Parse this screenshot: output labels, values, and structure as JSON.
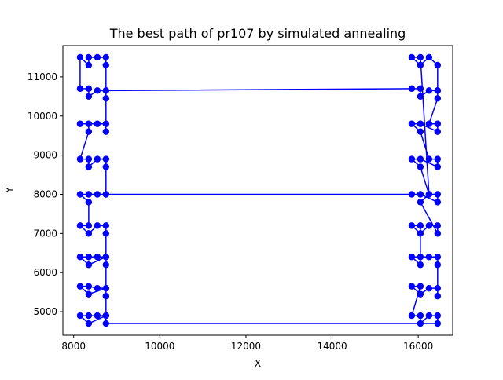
{
  "chart_data": {
    "type": "line",
    "title": "The best path of pr107 by simulated annealing",
    "xlabel": "X",
    "ylabel": "Y",
    "xlim": [
      7750,
      16800
    ],
    "ylim": [
      4400,
      11800
    ],
    "xticks": [
      8000,
      10000,
      12000,
      14000,
      16000
    ],
    "yticks": [
      5000,
      6000,
      7000,
      8000,
      9000,
      10000,
      11000
    ],
    "xtick_labels": [
      "8000",
      "10000",
      "12000",
      "14000",
      "16000"
    ],
    "ytick_labels": [
      "5000",
      "6000",
      "7000",
      "8000",
      "9000",
      "10000",
      "11000"
    ],
    "grid": false,
    "legend": "none",
    "series": [
      {
        "color": "#0000ff",
        "marker": "circle",
        "points": [
          [
            8750,
            8000
          ],
          [
            8750,
            8700
          ],
          [
            8750,
            8900
          ],
          [
            8550,
            8900
          ],
          [
            8350,
            8700
          ],
          [
            8350,
            8900
          ],
          [
            8150,
            8900
          ],
          [
            8350,
            9600
          ],
          [
            8350,
            9800
          ],
          [
            8150,
            9800
          ],
          [
            8550,
            9800
          ],
          [
            8750,
            9800
          ],
          [
            8750,
            9600
          ],
          [
            8750,
            10450
          ],
          [
            8750,
            10650
          ],
          [
            8550,
            10650
          ],
          [
            8350,
            10500
          ],
          [
            8350,
            10700
          ],
          [
            8150,
            10700
          ],
          [
            8150,
            11500
          ],
          [
            8350,
            11300
          ],
          [
            8350,
            11500
          ],
          [
            8550,
            11500
          ],
          [
            8750,
            11500
          ],
          [
            8750,
            11300
          ],
          [
            8750,
            10650
          ],
          [
            15850,
            10700
          ],
          [
            16050,
            10700
          ],
          [
            16050,
            10500
          ],
          [
            16250,
            10650
          ],
          [
            16450,
            10650
          ],
          [
            16450,
            10450
          ],
          [
            16250,
            9800
          ],
          [
            16450,
            9800
          ],
          [
            16450,
            9600
          ],
          [
            16050,
            9800
          ],
          [
            15850,
            9800
          ],
          [
            16050,
            9600
          ],
          [
            16250,
            8900
          ],
          [
            16450,
            8900
          ],
          [
            16450,
            8700
          ],
          [
            16050,
            8900
          ],
          [
            15850,
            8900
          ],
          [
            16050,
            8700
          ],
          [
            16250,
            8000
          ],
          [
            16450,
            8000
          ],
          [
            16450,
            7800
          ],
          [
            16050,
            8000
          ],
          [
            15850,
            8000
          ],
          [
            8750,
            8000
          ],
          [
            8550,
            8000
          ],
          [
            8350,
            8000
          ],
          [
            8150,
            8000
          ],
          [
            8350,
            7800
          ],
          [
            8350,
            7200
          ],
          [
            8150,
            7200
          ],
          [
            8350,
            7000
          ],
          [
            8550,
            7200
          ],
          [
            8750,
            7200
          ],
          [
            8750,
            7000
          ],
          [
            8750,
            6400
          ],
          [
            8550,
            6400
          ],
          [
            8350,
            6400
          ],
          [
            8150,
            6400
          ],
          [
            8350,
            6200
          ],
          [
            8750,
            6400
          ],
          [
            8750,
            6200
          ],
          [
            8750,
            5600
          ],
          [
            8550,
            5600
          ],
          [
            8350,
            5650
          ],
          [
            8150,
            5650
          ],
          [
            8350,
            5450
          ],
          [
            8750,
            5600
          ],
          [
            8750,
            5400
          ],
          [
            8750,
            4900
          ],
          [
            8550,
            4900
          ],
          [
            8350,
            4900
          ],
          [
            8150,
            4900
          ],
          [
            8350,
            4700
          ],
          [
            8750,
            4900
          ],
          [
            8750,
            4700
          ],
          [
            16450,
            4700
          ],
          [
            16450,
            4900
          ],
          [
            16250,
            4900
          ],
          [
            16050,
            4700
          ],
          [
            16050,
            4900
          ],
          [
            15850,
            4900
          ],
          [
            16050,
            5650
          ],
          [
            15850,
            5650
          ],
          [
            16050,
            5450
          ],
          [
            16250,
            5600
          ],
          [
            16450,
            5600
          ],
          [
            16450,
            5400
          ],
          [
            16450,
            6200
          ],
          [
            16450,
            6400
          ],
          [
            16250,
            6400
          ],
          [
            16050,
            6400
          ],
          [
            15850,
            6400
          ],
          [
            16050,
            6200
          ],
          [
            16050,
            7200
          ],
          [
            15850,
            7200
          ],
          [
            16050,
            7000
          ],
          [
            16250,
            7200
          ],
          [
            16450,
            7200
          ],
          [
            16450,
            7000
          ],
          [
            16050,
            7800
          ],
          [
            16250,
            8000
          ],
          [
            16050,
            11500
          ],
          [
            15850,
            11500
          ],
          [
            16050,
            11300
          ],
          [
            16250,
            11500
          ],
          [
            16450,
            11300
          ],
          [
            16450,
            10650
          ]
        ]
      }
    ]
  }
}
